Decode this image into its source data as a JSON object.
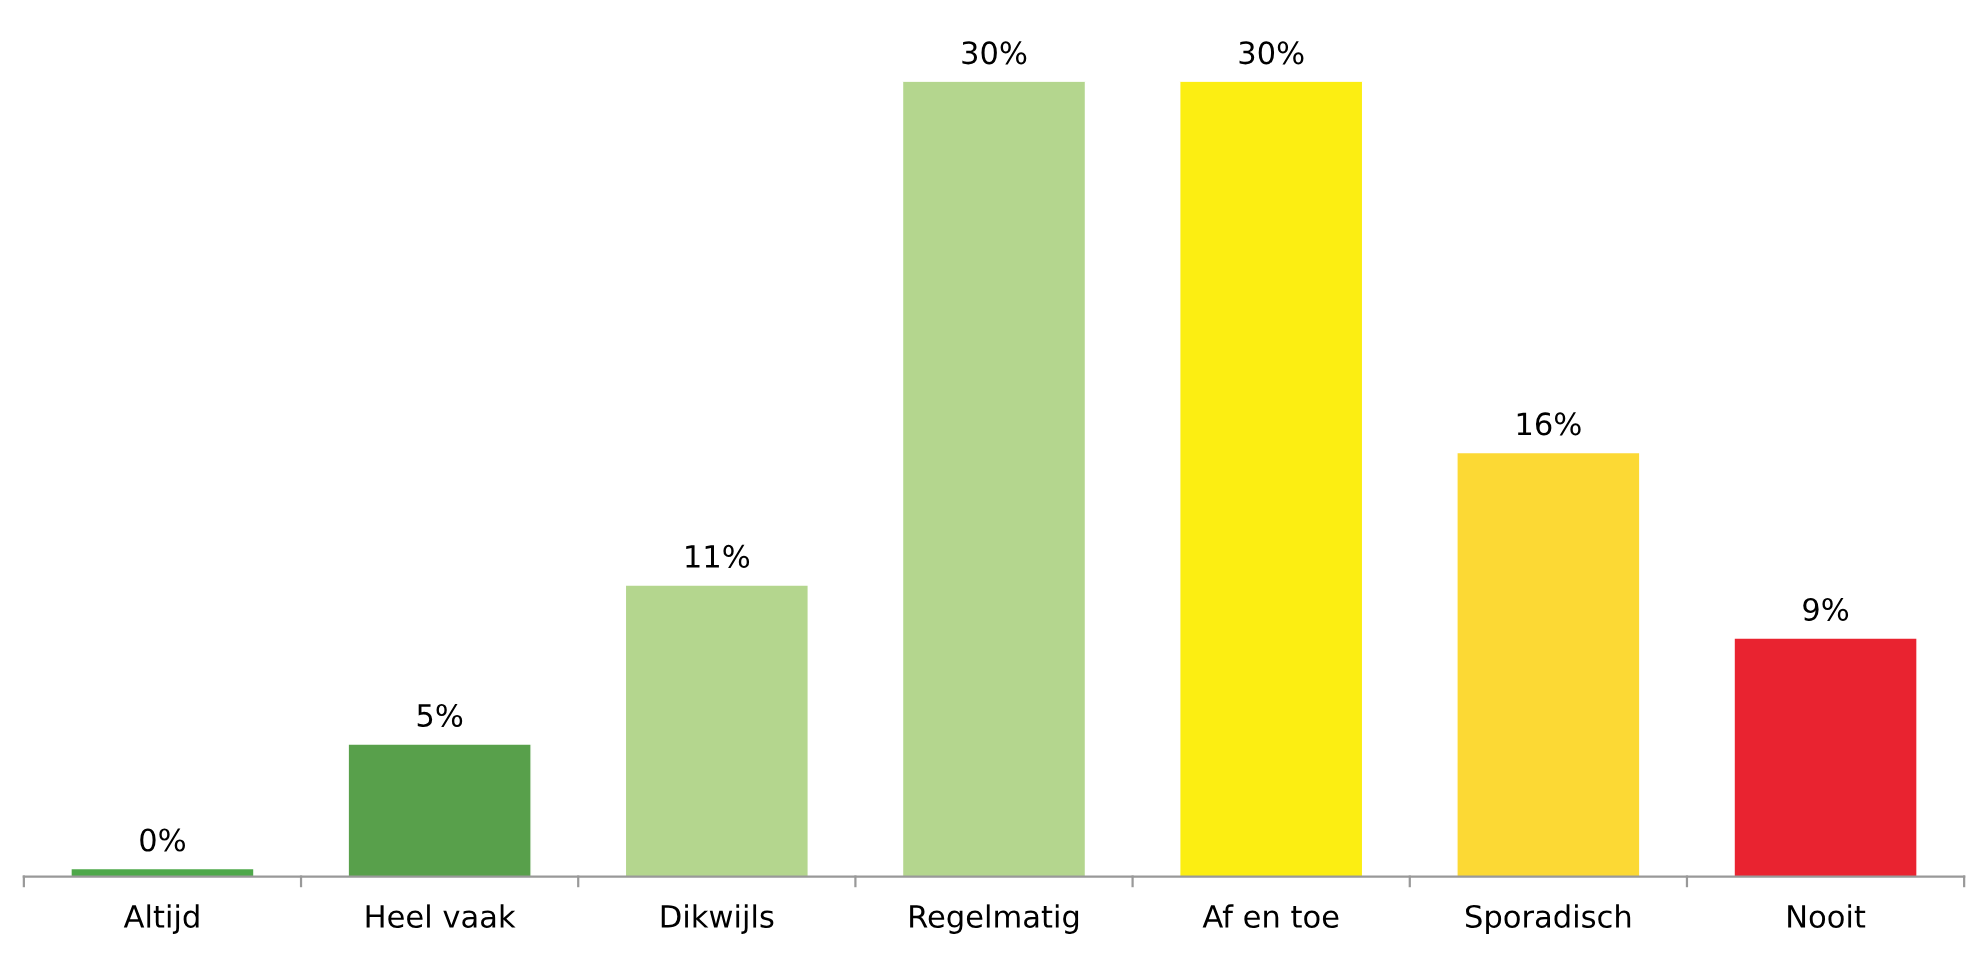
{
  "chart_data": {
    "type": "bar",
    "categories": [
      "Altijd",
      "Heel vaak",
      "Dikwijls",
      "Regelmatig",
      "Af en toe",
      "Sporadisch",
      "Nooit"
    ],
    "values": [
      0.3,
      5,
      11,
      30,
      30,
      16,
      9
    ],
    "value_labels": [
      "0%",
      "5%",
      "11%",
      "30%",
      "30%",
      "16%",
      "9%"
    ],
    "colors": [
      "#4ea84a",
      "#58a04b",
      "#b4d68e",
      "#b4d68e",
      "#fcee12",
      "#fcd934",
      "#e92330"
    ],
    "grid": false,
    "legend": false
  }
}
